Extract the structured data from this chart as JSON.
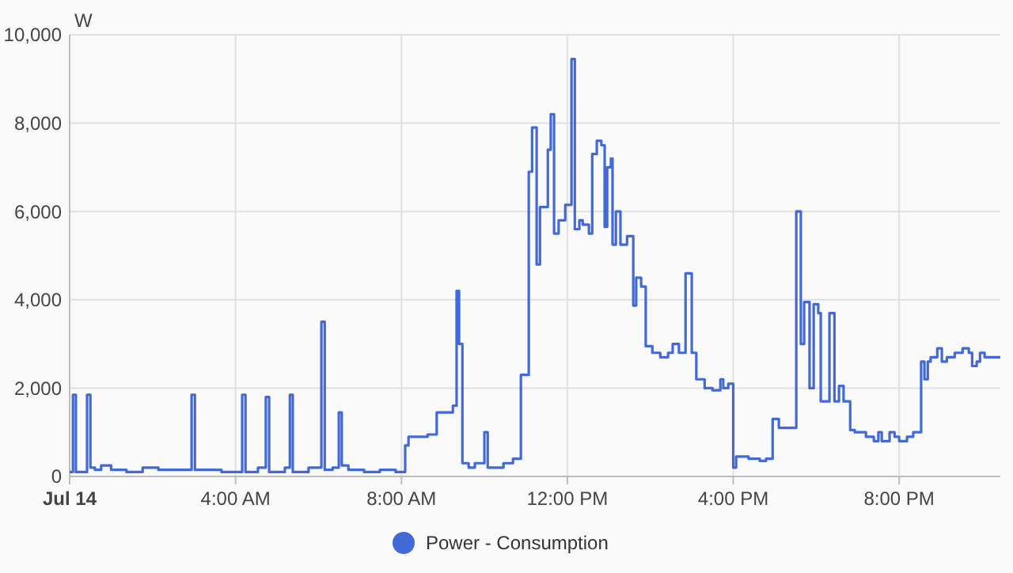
{
  "chart_data": {
    "type": "step",
    "ylabel": "W",
    "x": [
      0,
      0.08,
      0.15,
      0.42,
      0.5,
      0.61,
      0.76,
      1.0,
      1.37,
      1.76,
      2.14,
      2.94,
      3.02,
      3.28,
      3.66,
      4.16,
      4.24,
      4.54,
      4.73,
      4.81,
      5.19,
      5.31,
      5.38,
      5.76,
      6.07,
      6.15,
      6.34,
      6.49,
      6.56,
      6.72,
      7.1,
      7.48,
      7.86,
      8.09,
      8.17,
      8.63,
      8.85,
      9.24,
      9.33,
      9.39,
      9.47,
      9.62,
      9.77,
      10.0,
      10.08,
      10.46,
      10.69,
      10.88,
      11.07,
      11.15,
      11.26,
      11.34,
      11.53,
      11.6,
      11.68,
      11.79,
      11.95,
      12.1,
      12.18,
      12.29,
      12.37,
      12.52,
      12.6,
      12.71,
      12.82,
      12.9,
      12.96,
      13.05,
      13.09,
      13.17,
      13.28,
      13.44,
      13.59,
      13.66,
      13.78,
      13.89,
      14.05,
      14.24,
      14.43,
      14.54,
      14.69,
      14.85,
      15.0,
      15.11,
      15.31,
      15.5,
      15.69,
      15.76,
      15.88,
      16.0,
      16.07,
      16.37,
      16.64,
      16.79,
      16.95,
      17.1,
      17.52,
      17.63,
      17.71,
      17.84,
      17.94,
      18.05,
      18.11,
      18.32,
      18.44,
      18.55,
      18.66,
      18.82,
      18.93,
      19.2,
      19.39,
      19.5,
      19.58,
      19.77,
      19.89,
      20.0,
      20.19,
      20.34,
      20.53,
      20.61,
      20.69,
      20.76,
      20.92,
      21.03,
      21.15,
      21.34,
      21.53,
      21.68,
      21.76,
      21.87,
      21.95,
      22.06,
      22.44
    ],
    "series": [
      {
        "name": "Power - Consumption",
        "color": "#4169d8",
        "values": [
          100,
          1850,
          100,
          1850,
          200,
          150,
          250,
          150,
          100,
          200,
          150,
          1850,
          150,
          150,
          100,
          1850,
          100,
          200,
          1800,
          100,
          200,
          1850,
          100,
          200,
          3500,
          150,
          200,
          1450,
          250,
          150,
          100,
          150,
          100,
          700,
          900,
          950,
          1450,
          1600,
          4200,
          3000,
          300,
          200,
          300,
          1000,
          200,
          300,
          400,
          2300,
          6900,
          7900,
          4800,
          6100,
          7400,
          8200,
          5500,
          5800,
          6150,
          9450,
          5600,
          5800,
          5700,
          5500,
          7300,
          7600,
          7500,
          5650,
          7000,
          7200,
          5250,
          6000,
          5250,
          5440,
          3870,
          4500,
          4300,
          2950,
          2800,
          2700,
          2800,
          3000,
          2800,
          4600,
          2800,
          2200,
          2000,
          1950,
          2200,
          2000,
          2100,
          200,
          450,
          400,
          350,
          400,
          1300,
          1100,
          6000,
          3000,
          3950,
          2000,
          3900,
          3700,
          1700,
          3700,
          1700,
          2050,
          1700,
          1050,
          1000,
          900,
          800,
          1000,
          800,
          1000,
          900,
          800,
          900,
          1000,
          2600,
          2200,
          2600,
          2700,
          2900,
          2600,
          2700,
          2800,
          2900,
          2800,
          2500,
          2600,
          2800,
          2700,
          2700
        ]
      }
    ],
    "xlim": [
      0,
      22.44
    ],
    "xticks": [
      {
        "value": 0,
        "label": "Jul 14"
      },
      {
        "value": 4,
        "label": "4:00 AM"
      },
      {
        "value": 8,
        "label": "8:00 AM"
      },
      {
        "value": 12,
        "label": "12:00 PM"
      },
      {
        "value": 16,
        "label": "4:00 PM"
      },
      {
        "value": 20,
        "label": "8:00 PM"
      }
    ],
    "ylim": [
      0,
      10000
    ],
    "yticks": [
      {
        "value": 0,
        "label": "0"
      },
      {
        "value": 2000,
        "label": "2,000"
      },
      {
        "value": 4000,
        "label": "4,000"
      },
      {
        "value": 6000,
        "label": "6,000"
      },
      {
        "value": 8000,
        "label": "8,000"
      },
      {
        "value": 10000,
        "label": "10,000"
      }
    ],
    "grid": true,
    "legend": "bottom",
    "line_style": "solid"
  }
}
